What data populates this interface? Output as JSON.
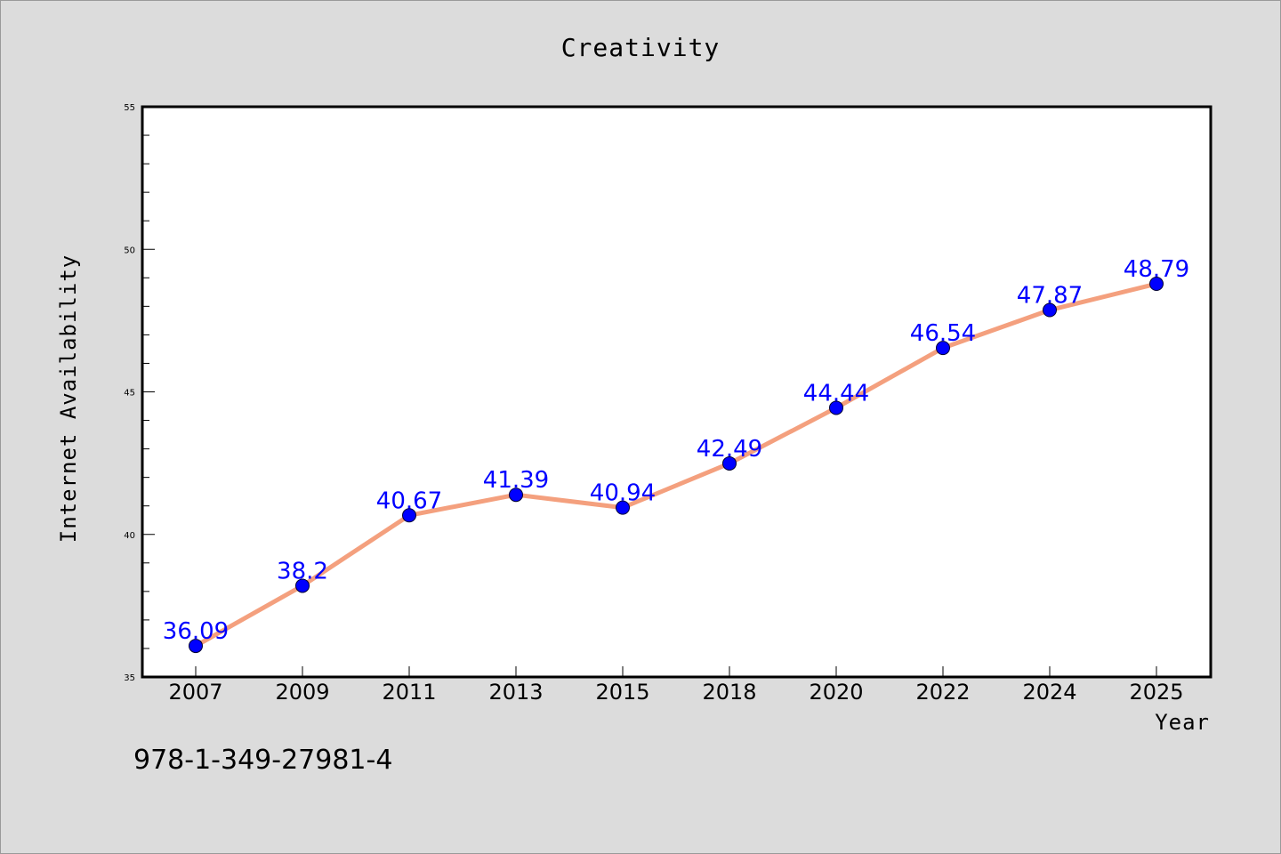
{
  "chart_data": {
    "type": "line",
    "title": "Creativity",
    "xlabel": "Year",
    "ylabel": "Internet Availability",
    "categories": [
      "2007",
      "2009",
      "2011",
      "2013",
      "2015",
      "2018",
      "2020",
      "2022",
      "2024",
      "2025"
    ],
    "series": [
      {
        "values": [
          36.09,
          38.2,
          40.67,
          41.39,
          40.94,
          42.49,
          44.44,
          46.54,
          47.87,
          48.79
        ],
        "line_color": "#f4a07e",
        "marker_color": "#0000ff"
      }
    ],
    "data_labels": [
      "36.09",
      "38.2",
      "40.67",
      "41.39",
      "40.94",
      "42.49",
      "44.44",
      "46.54",
      "47.87",
      "48.79"
    ],
    "ylim": [
      35,
      55
    ],
    "yticks": [
      "35",
      "40",
      "45",
      "50",
      "55"
    ],
    "grid": false,
    "legend": "none"
  },
  "footer_text": "978-1-349-27981-4"
}
